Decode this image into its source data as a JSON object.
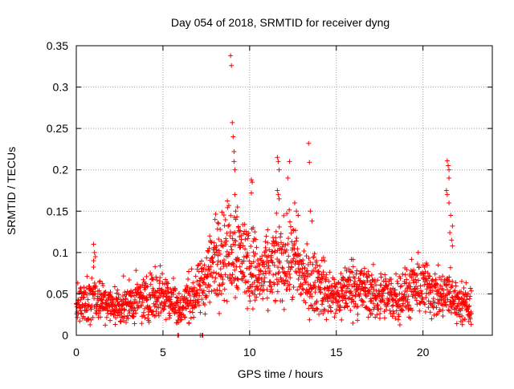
{
  "chart_data": {
    "type": "scatter",
    "title": "Day 054 of 2018, SRMTID for receiver dyng",
    "xlabel": "GPS time / hours",
    "ylabel": "SRMTID / TECUs",
    "xlim": [
      0,
      24
    ],
    "ylim": [
      0,
      0.35
    ],
    "grid": true,
    "marker": "+",
    "color": "#ff0000",
    "x_ticks": [
      "0",
      "5",
      "10",
      "15",
      "20"
    ],
    "x_tick_values": [
      0,
      5,
      10,
      15,
      20
    ],
    "y_ticks": [
      "0",
      "0.05",
      "0.1",
      "0.15",
      "0.2",
      "0.25",
      "0.3",
      "0.35"
    ],
    "y_tick_values": [
      0,
      0.05,
      0.1,
      0.15,
      0.2,
      0.25,
      0.3,
      0.35
    ],
    "data_range": [
      0,
      22.8
    ],
    "series": [
      {
        "name": "SRMTID",
        "baseline": [
          [
            0.0,
            0.04
          ],
          [
            0.5,
            0.038
          ],
          [
            1.0,
            0.05
          ],
          [
            1.5,
            0.04
          ],
          [
            2.0,
            0.035
          ],
          [
            3.0,
            0.038
          ],
          [
            4.0,
            0.045
          ],
          [
            4.8,
            0.052
          ],
          [
            5.5,
            0.045
          ],
          [
            6.0,
            0.03
          ],
          [
            6.5,
            0.045
          ],
          [
            7.0,
            0.05
          ],
          [
            7.5,
            0.07
          ],
          [
            8.0,
            0.09
          ],
          [
            8.5,
            0.1
          ],
          [
            9.0,
            0.105
          ],
          [
            9.5,
            0.1
          ],
          [
            10.0,
            0.085
          ],
          [
            10.5,
            0.07
          ],
          [
            11.0,
            0.075
          ],
          [
            11.5,
            0.085
          ],
          [
            12.0,
            0.09
          ],
          [
            12.5,
            0.09
          ],
          [
            13.0,
            0.075
          ],
          [
            13.5,
            0.06
          ],
          [
            14.0,
            0.065
          ],
          [
            14.5,
            0.05
          ],
          [
            15.0,
            0.045
          ],
          [
            15.5,
            0.055
          ],
          [
            16.0,
            0.06
          ],
          [
            17.0,
            0.05
          ],
          [
            18.0,
            0.045
          ],
          [
            19.0,
            0.05
          ],
          [
            19.5,
            0.055
          ],
          [
            20.0,
            0.06
          ],
          [
            20.5,
            0.055
          ],
          [
            21.0,
            0.045
          ],
          [
            21.5,
            0.05
          ],
          [
            22.0,
            0.04
          ],
          [
            22.8,
            0.035
          ]
        ],
        "spikes": [
          [
            1.0,
            0.11
          ],
          [
            1.05,
            0.1
          ],
          [
            1.1,
            0.095
          ],
          [
            1.0,
            0.09
          ],
          [
            8.9,
            0.338
          ],
          [
            8.95,
            0.326
          ],
          [
            9.0,
            0.257
          ],
          [
            9.05,
            0.24
          ],
          [
            9.1,
            0.222
          ],
          [
            9.1,
            0.21
          ],
          [
            9.15,
            0.2
          ],
          [
            9.15,
            0.17
          ],
          [
            9.2,
            0.15
          ],
          [
            9.2,
            0.14
          ],
          [
            9.3,
            0.155
          ],
          [
            9.35,
            0.13
          ],
          [
            10.1,
            0.188
          ],
          [
            10.15,
            0.185
          ],
          [
            10.1,
            0.172
          ],
          [
            10.2,
            0.13
          ],
          [
            10.3,
            0.125
          ],
          [
            11.6,
            0.215
          ],
          [
            11.65,
            0.21
          ],
          [
            11.7,
            0.2
          ],
          [
            11.6,
            0.175
          ],
          [
            11.65,
            0.17
          ],
          [
            11.7,
            0.165
          ],
          [
            12.3,
            0.21
          ],
          [
            12.2,
            0.19
          ],
          [
            12.6,
            0.16
          ],
          [
            12.7,
            0.15
          ],
          [
            12.8,
            0.145
          ],
          [
            13.4,
            0.232
          ],
          [
            13.45,
            0.209
          ],
          [
            13.5,
            0.15
          ],
          [
            13.6,
            0.138
          ],
          [
            21.4,
            0.211
          ],
          [
            21.45,
            0.205
          ],
          [
            21.5,
            0.2
          ],
          [
            21.5,
            0.19
          ],
          [
            21.35,
            0.175
          ],
          [
            21.4,
            0.17
          ],
          [
            21.5,
            0.16
          ],
          [
            21.6,
            0.145
          ],
          [
            21.7,
            0.132
          ],
          [
            21.55,
            0.124
          ],
          [
            21.65,
            0.115
          ],
          [
            21.7,
            0.108
          ],
          [
            8.2,
            0.135
          ],
          [
            8.3,
            0.128
          ],
          [
            7.7,
            0.12
          ],
          [
            8.0,
            0.14
          ]
        ],
        "low_points": [
          [
            5.85,
            0.0
          ],
          [
            5.9,
            0.0
          ],
          [
            7.15,
            0.0
          ],
          [
            7.25,
            0.0
          ],
          [
            7.3,
            0.0
          ]
        ]
      }
    ]
  }
}
